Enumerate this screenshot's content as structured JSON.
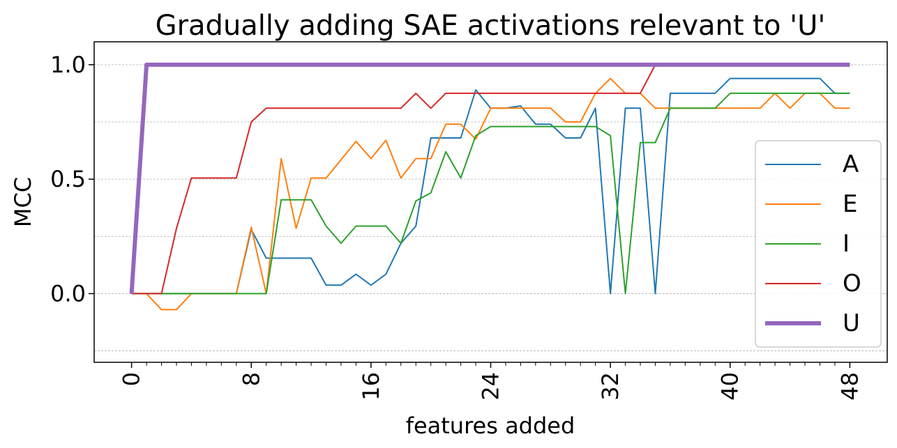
{
  "chart_data": {
    "type": "line",
    "title": "Gradually adding SAE activations relevant to 'U'",
    "xlabel": "features added",
    "ylabel": "MCC",
    "xlim": [
      -2.5,
      50.5
    ],
    "ylim": [
      -0.3,
      1.1
    ],
    "x_ticks": [
      0,
      8,
      16,
      24,
      32,
      40,
      48
    ],
    "x_tick_labels": [
      "0",
      "8",
      "16",
      "24",
      "32",
      "40",
      "48"
    ],
    "x_minor_ticks": [
      1,
      2,
      3,
      4,
      5,
      6,
      7,
      9,
      10,
      11,
      12,
      13,
      14,
      15,
      17,
      18,
      19,
      20,
      21,
      22,
      23,
      25,
      26,
      27,
      28,
      29,
      30,
      31,
      33,
      34,
      35,
      36,
      37,
      38,
      39,
      41,
      42,
      43,
      44,
      45,
      46,
      47
    ],
    "y_ticks": [
      0.0,
      0.5,
      1.0
    ],
    "y_tick_labels": [
      "0.0",
      "0.5",
      "1.0"
    ],
    "y_gridlines": [
      -0.25,
      0.0,
      0.25,
      0.5,
      0.75,
      1.0
    ],
    "grid": "horizontal dashed",
    "legend_position": "right",
    "x": [
      0,
      1,
      2,
      3,
      4,
      5,
      6,
      7,
      8,
      9,
      10,
      11,
      12,
      13,
      14,
      15,
      16,
      17,
      18,
      19,
      20,
      21,
      22,
      23,
      24,
      25,
      26,
      27,
      28,
      29,
      30,
      31,
      32,
      33,
      34,
      35,
      36,
      37,
      38,
      39,
      40,
      41,
      42,
      43,
      44,
      45,
      46,
      47,
      48
    ],
    "series": [
      {
        "name": "A",
        "color": "#1f77b4",
        "width": 2,
        "values": [
          0,
          0,
          0,
          0,
          0,
          0,
          0,
          0,
          0.28,
          0.155,
          0.155,
          0.155,
          0.155,
          0.037,
          0.037,
          0.085,
          0.037,
          0.085,
          0.22,
          0.295,
          0.68,
          0.68,
          0.68,
          0.89,
          0.81,
          0.81,
          0.82,
          0.74,
          0.74,
          0.68,
          0.68,
          0.81,
          0,
          0.81,
          0.81,
          0,
          0.875,
          0.875,
          0.875,
          0.875,
          0.94,
          0.94,
          0.94,
          0.94,
          0.94,
          0.94,
          0.94,
          0.875,
          0.875
        ]
      },
      {
        "name": "E",
        "color": "#ff7f0e",
        "width": 2,
        "values": [
          0,
          0,
          -0.07,
          -0.07,
          0,
          0,
          0,
          0,
          0.29,
          0,
          0.59,
          0.285,
          0.505,
          0.505,
          0.585,
          0.665,
          0.59,
          0.67,
          0.505,
          0.59,
          0.59,
          0.74,
          0.74,
          0.675,
          0.81,
          0.81,
          0.81,
          0.81,
          0.81,
          0.75,
          0.75,
          0.875,
          0.94,
          0.875,
          0.875,
          0.81,
          0.81,
          0.81,
          0.81,
          0.81,
          0.81,
          0.81,
          0.81,
          0.875,
          0.81,
          0.875,
          0.875,
          0.81,
          0.81
        ]
      },
      {
        "name": "I",
        "color": "#2ca02c",
        "width": 2,
        "values": [
          0,
          0,
          0,
          0,
          0,
          0,
          0,
          0,
          0,
          0,
          0.41,
          0.41,
          0.41,
          0.295,
          0.22,
          0.295,
          0.295,
          0.295,
          0.22,
          0.405,
          0.44,
          0.62,
          0.505,
          0.69,
          0.73,
          0.73,
          0.73,
          0.73,
          0.73,
          0.73,
          0.73,
          0.73,
          0.69,
          0,
          0.66,
          0.66,
          0.81,
          0.81,
          0.81,
          0.81,
          0.875,
          0.875,
          0.875,
          0.875,
          0.875,
          0.875,
          0.875,
          0.875,
          0.875
        ]
      },
      {
        "name": "O",
        "color": "#d62728",
        "width": 2,
        "values": [
          0,
          0,
          0,
          0.285,
          0.505,
          0.505,
          0.505,
          0.505,
          0.75,
          0.81,
          0.81,
          0.81,
          0.81,
          0.81,
          0.81,
          0.81,
          0.81,
          0.81,
          0.81,
          0.875,
          0.81,
          0.875,
          0.875,
          0.875,
          0.875,
          0.875,
          0.875,
          0.875,
          0.875,
          0.875,
          0.875,
          0.875,
          0.875,
          0.875,
          0.875,
          1,
          1,
          1,
          1,
          1,
          1,
          1,
          1,
          1,
          1,
          1,
          1,
          1,
          1
        ]
      },
      {
        "name": "U",
        "color": "#9467bd",
        "width": 6,
        "values": [
          0,
          1,
          1,
          1,
          1,
          1,
          1,
          1,
          1,
          1,
          1,
          1,
          1,
          1,
          1,
          1,
          1,
          1,
          1,
          1,
          1,
          1,
          1,
          1,
          1,
          1,
          1,
          1,
          1,
          1,
          1,
          1,
          1,
          1,
          1,
          1,
          1,
          1,
          1,
          1,
          1,
          1,
          1,
          1,
          1,
          1,
          1,
          1,
          1
        ]
      }
    ]
  }
}
